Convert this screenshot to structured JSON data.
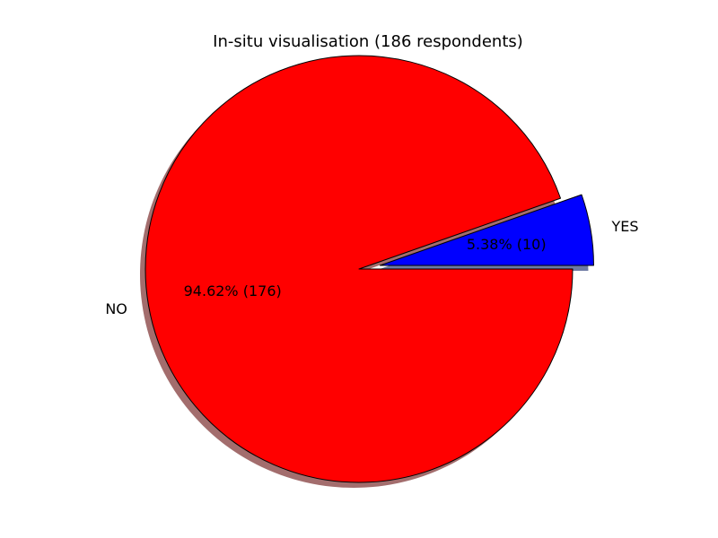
{
  "chart_data": {
    "type": "pie",
    "title": "In-situ visualisation (186 respondents)",
    "slices": [
      {
        "label": "NO",
        "value": 176,
        "percent_label": "94.62%  (176)",
        "color": "#ff0000",
        "shadow_color": "#a36d6d"
      },
      {
        "label": "YES",
        "value": 10,
        "percent_label": "5.38%  (10)",
        "color": "#0000ff",
        "shadow_color": "#6d7aa3"
      }
    ],
    "explode": [
      0,
      0.1
    ],
    "shadow": true,
    "start_angle": 0
  }
}
